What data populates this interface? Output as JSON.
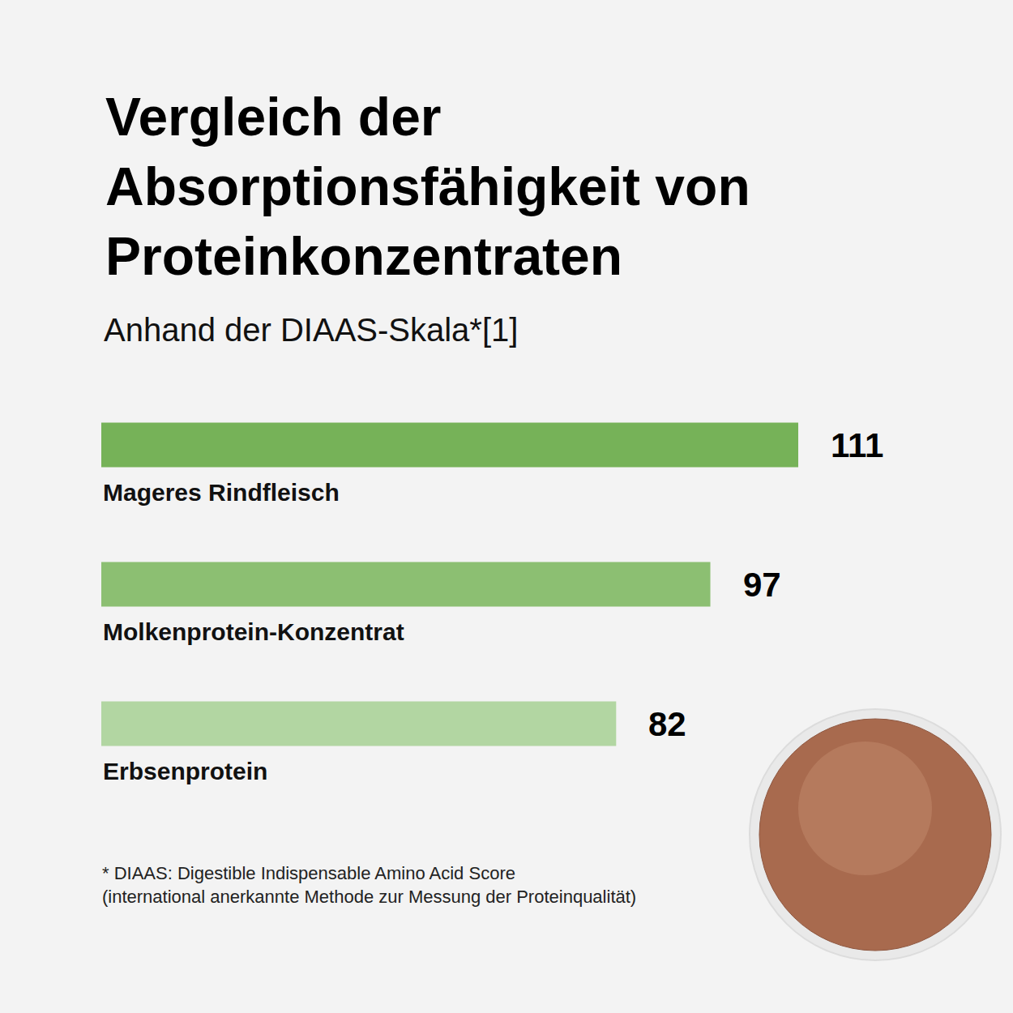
{
  "chart_data": {
    "type": "bar",
    "title": "Vergleich der Absorptionsfähigkeit von Proteinkonzentraten",
    "subtitle": "Anhand der DIAAS-Skala*[1]",
    "categories": [
      "Mageres Rindfleisch",
      "Molkenprotein-Konzentrat",
      "Erbsenprotein"
    ],
    "values": [
      111,
      97,
      82
    ],
    "colors": [
      "#76b258",
      "#8cbf72",
      "#b2d6a2"
    ],
    "orientation": "horizontal",
    "xlim": [
      0,
      111
    ],
    "data_labels": true,
    "tick_labels": false,
    "grid": false,
    "footnote": [
      "* DIAAS: Digestible Indispensable Amino Acid Score",
      "(international anerkannte Methode zur Messung der Proteinqualität)"
    ]
  }
}
